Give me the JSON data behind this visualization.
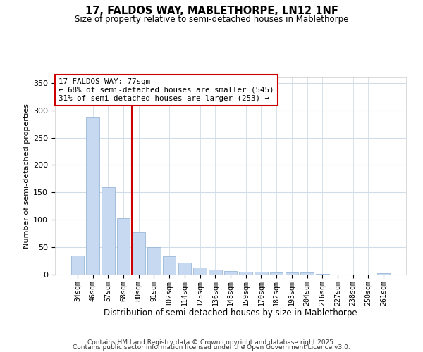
{
  "title": "17, FALDOS WAY, MABLETHORPE, LN12 1NF",
  "subtitle": "Size of property relative to semi-detached houses in Mablethorpe",
  "xlabel": "Distribution of semi-detached houses by size in Mablethorpe",
  "ylabel": "Number of semi-detached properties",
  "categories": [
    "34sqm",
    "46sqm",
    "57sqm",
    "68sqm",
    "80sqm",
    "91sqm",
    "102sqm",
    "114sqm",
    "125sqm",
    "136sqm",
    "148sqm",
    "159sqm",
    "170sqm",
    "182sqm",
    "193sqm",
    "204sqm",
    "216sqm",
    "227sqm",
    "238sqm",
    "250sqm",
    "261sqm"
  ],
  "values": [
    35,
    288,
    160,
    103,
    77,
    50,
    33,
    22,
    13,
    9,
    6,
    5,
    5,
    4,
    4,
    4,
    1,
    0,
    0,
    0,
    2
  ],
  "bar_color": "#c6d9f0",
  "bar_edge_color": "#9ab8d8",
  "vline_color": "#cc0000",
  "vline_x_index": 4,
  "ylim": [
    0,
    360
  ],
  "yticks": [
    0,
    50,
    100,
    150,
    200,
    250,
    300,
    350
  ],
  "annotation_title": "17 FALDOS WAY: 77sqm",
  "annotation_line1": "← 68% of semi-detached houses are smaller (545)",
  "annotation_line2": "31% of semi-detached houses are larger (253) →",
  "annotation_box_color": "#ffffff",
  "annotation_box_edge": "#cc0000",
  "footer1": "Contains HM Land Registry data © Crown copyright and database right 2025.",
  "footer2": "Contains public sector information licensed under the Open Government Licence v3.0.",
  "background_color": "#ffffff",
  "grid_color": "#d0dde8"
}
